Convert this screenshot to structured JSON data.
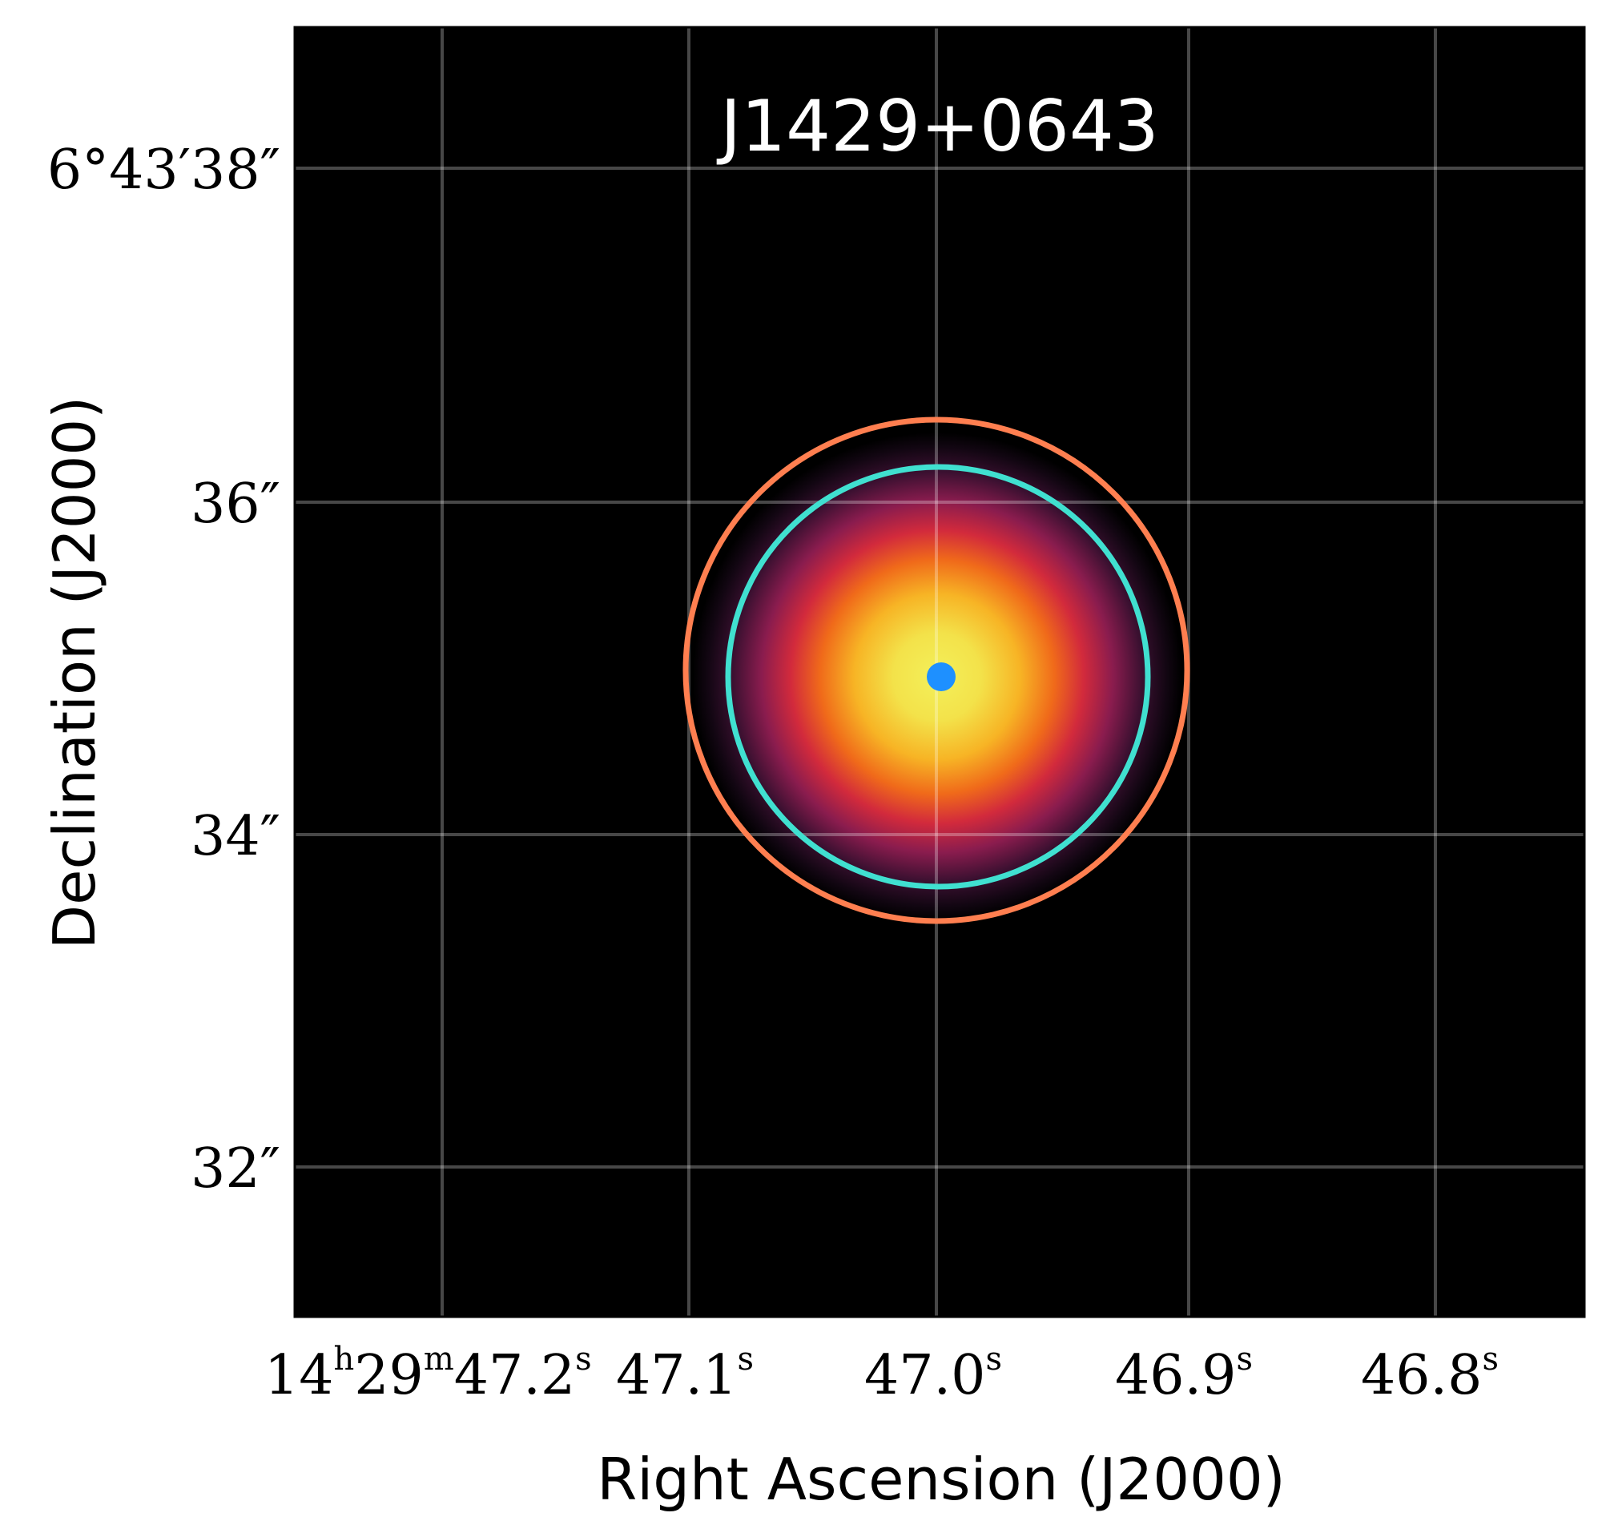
{
  "figure": {
    "title": "J1429+0643",
    "xlabel": "Right Ascension (J2000)",
    "ylabel": "Declination (J2000)",
    "xticks": [
      {
        "main": "14",
        "sup1": "h",
        "mid": "29",
        "sup2": "m",
        "val": "47.2",
        "sup3": "s"
      },
      {
        "val": "47.1",
        "sup": "s"
      },
      {
        "val": "47.0",
        "sup": "s"
      },
      {
        "val": "46.9",
        "sup": "s"
      },
      {
        "val": "46.8",
        "sup": "s"
      }
    ],
    "yticks": [
      "6°43′38″",
      "36″",
      "34″",
      "32″"
    ],
    "colors": {
      "background": "#000000",
      "grid": "#ffffff",
      "outer_circle": "#ff7f50",
      "inner_circle": "#40e0d0",
      "center_marker": "#1e90ff"
    }
  }
}
